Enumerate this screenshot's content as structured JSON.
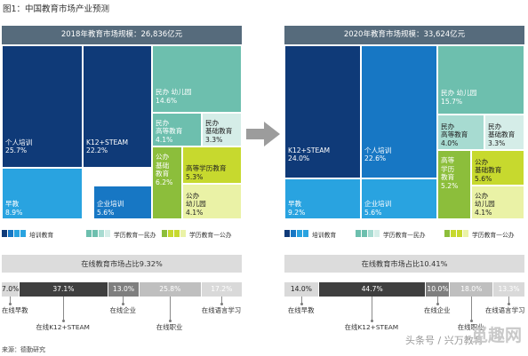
{
  "figure_title": "图1：中国教育市场产业预测",
  "source": "来源：德勤研究",
  "watermark": "头条号 / 兴万教育",
  "watermark_logo_text": "觅趣网",
  "colors": {
    "training_dark": "#0f3a78",
    "training_mid": "#1777c4",
    "training_light": "#29a3e0",
    "academic_mid": "#6dbfae",
    "academic_light": "#a7dbd1",
    "academic_pale": "#d5ede8",
    "public_dark": "#8cbe3b",
    "public_mid": "#c7d92e",
    "public_light": "#eaf2a6",
    "online_header": "#dcdcdc",
    "seg_dark": "#3f3f3f",
    "seg_mid": "#7f7f7f",
    "seg_light": "#bfbfbf",
    "seg_pale": "#d9d9d9",
    "treemap_header": "#566b7c",
    "arrow": "#9c9c9c"
  },
  "chart_data": [
    {
      "type": "treemap",
      "title": "2018年教育市场规模：26,836亿元",
      "cells": [
        {
          "id": "personal",
          "lines": [
            "个人培训",
            "25.7%"
          ],
          "value": 25.7,
          "group": "training",
          "color": "training_dark"
        },
        {
          "id": "k12",
          "lines": [
            "K12+STEAM",
            "22.2%"
          ],
          "value": 22.2,
          "group": "training",
          "color": "training_dark"
        },
        {
          "id": "early",
          "lines": [
            "早教",
            "8.9%"
          ],
          "value": 8.9,
          "group": "training",
          "color": "training_light"
        },
        {
          "id": "corporate",
          "lines": [
            "企业培训",
            "5.6%"
          ],
          "value": 5.6,
          "group": "training",
          "color": "training_mid"
        },
        {
          "id": "private_kg",
          "lines": [
            "民办 幼儿园",
            "14.6%"
          ],
          "value": 14.6,
          "group": "academic-private",
          "color": "academic_mid"
        },
        {
          "id": "private_higher",
          "lines": [
            "民办",
            "高等教育",
            "4.1%"
          ],
          "value": 4.1,
          "group": "academic-private",
          "color": "academic_mid"
        },
        {
          "id": "private_basic",
          "lines": [
            "民办",
            "基础教育",
            "3.3%"
          ],
          "value": 3.3,
          "group": "academic-private",
          "color": "academic_pale"
        },
        {
          "id": "public_basic",
          "lines": [
            "公办",
            "基础",
            "教育",
            "6.2%"
          ],
          "value": 6.2,
          "group": "academic-public",
          "color": "public_dark"
        },
        {
          "id": "higher_degree",
          "lines": [
            "高等学历教育",
            "5.3%"
          ],
          "value": 5.3,
          "group": "academic-public",
          "color": "public_mid"
        },
        {
          "id": "public_kg",
          "lines": [
            "公办",
            "幼儿园",
            "4.1%"
          ],
          "value": 4.1,
          "group": "academic-public",
          "color": "public_light"
        }
      ]
    },
    {
      "type": "treemap",
      "title": "2020年教育市场规模：33,624亿元",
      "cells": [
        {
          "id": "k12",
          "lines": [
            "K12+STEAM",
            "24.0%"
          ],
          "value": 24.0,
          "group": "training",
          "color": "training_dark"
        },
        {
          "id": "personal",
          "lines": [
            "个人培训",
            "22.6%"
          ],
          "value": 22.6,
          "group": "training",
          "color": "training_mid"
        },
        {
          "id": "early",
          "lines": [
            "早教",
            "9.2%"
          ],
          "value": 9.2,
          "group": "training",
          "color": "training_light"
        },
        {
          "id": "corporate",
          "lines": [
            "企业培训",
            "5.6%"
          ],
          "value": 5.6,
          "group": "training",
          "color": "training_light"
        },
        {
          "id": "private_kg",
          "lines": [
            "民办 幼儿园",
            "15.7%"
          ],
          "value": 15.7,
          "group": "academic-private",
          "color": "academic_mid"
        },
        {
          "id": "private_higher",
          "lines": [
            "民办",
            "高等教育",
            "4.0%"
          ],
          "value": 4.0,
          "group": "academic-private",
          "color": "academic_light"
        },
        {
          "id": "private_basic",
          "lines": [
            "民办",
            "基础教育",
            "3.3%"
          ],
          "value": 3.3,
          "group": "academic-private",
          "color": "academic_pale"
        },
        {
          "id": "higher_degree",
          "lines": [
            "高等",
            "学历",
            "教育",
            "5.2%"
          ],
          "value": 5.2,
          "group": "academic-public",
          "color": "public_dark"
        },
        {
          "id": "public_basic",
          "lines": [
            "公办",
            "基础教育",
            "5.6%"
          ],
          "value": 5.6,
          "group": "academic-public",
          "color": "public_mid"
        },
        {
          "id": "public_kg",
          "lines": [
            "公办",
            "幼儿园",
            "4.1%"
          ],
          "value": 4.1,
          "group": "academic-public",
          "color": "public_light"
        }
      ]
    },
    {
      "type": "stacked-bar",
      "title": "在线教育市场占比9.32%",
      "segments": [
        {
          "label": "在线早教",
          "value": 7.0,
          "text": "7.0%"
        },
        {
          "label": "在线K12+STEAM",
          "value": 37.1,
          "text": "37.1%"
        },
        {
          "label": "在线企业",
          "value": 13.0,
          "text": "13.0%"
        },
        {
          "label": "在线职业",
          "value": 25.8,
          "text": "25.8%"
        },
        {
          "label": "在线语言学习",
          "value": 17.2,
          "text": "17.2%"
        }
      ]
    },
    {
      "type": "stacked-bar",
      "title": "在线教育市场占比10.41%",
      "segments": [
        {
          "label": "在线早教",
          "value": 14.0,
          "text": "14.0%"
        },
        {
          "label": "在线K12+STEAM",
          "value": 44.7,
          "text": "44.7%"
        },
        {
          "label": "在线企业",
          "value": 10.0,
          "text": "10.0%"
        },
        {
          "label": "在线职业",
          "value": 18.0,
          "text": "18.0%"
        },
        {
          "label": "在线语言学习",
          "value": 13.3,
          "text": "13.3%"
        }
      ]
    }
  ],
  "legend": [
    {
      "label": "培训教育",
      "swatches": [
        "training_dark",
        "training_mid",
        "training_light",
        "training_light"
      ]
    },
    {
      "label": "学历教育—民办",
      "swatches": [
        "academic_mid",
        "academic_mid",
        "academic_light",
        "academic_pale"
      ]
    },
    {
      "label": "学历教育—公办",
      "swatches": [
        "public_dark",
        "public_mid",
        "public_mid",
        "public_light"
      ]
    }
  ]
}
